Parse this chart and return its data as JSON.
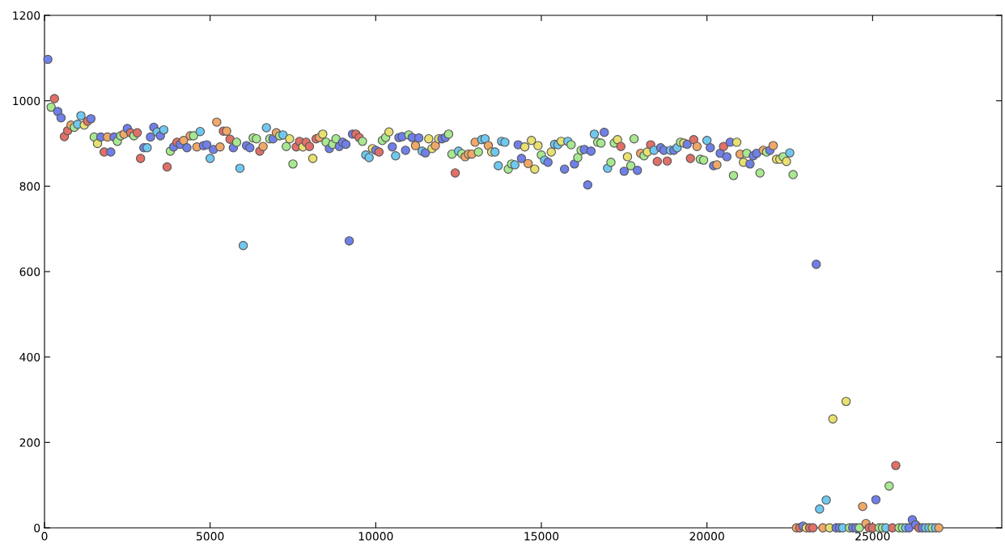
{
  "chart_data": {
    "type": "scatter",
    "xlim": [
      0,
      28900
    ],
    "ylim": [
      0,
      1200
    ],
    "xticks": [
      0,
      5000,
      10000,
      15000,
      20000,
      25000
    ],
    "yticks": [
      0,
      200,
      400,
      600,
      800,
      1000,
      1200
    ],
    "grid": false,
    "marker": "circle",
    "x": [
      100,
      200,
      300,
      400,
      500,
      600,
      700,
      800,
      900,
      1000,
      1100,
      1200,
      1300,
      1400,
      1500,
      1600,
      1700,
      1800,
      1900,
      2000,
      2100,
      2200,
      2300,
      2400,
      2500,
      2600,
      2700,
      2800,
      2900,
      3000,
      3100,
      3200,
      3300,
      3400,
      3500,
      3600,
      3700,
      3800,
      3900,
      4000,
      4100,
      4200,
      4300,
      4400,
      4500,
      4600,
      4700,
      4800,
      4900,
      5000,
      5100,
      5200,
      5300,
      5400,
      5500,
      5600,
      5700,
      5800,
      5900,
      6000,
      6100,
      6200,
      6300,
      6400,
      6500,
      6600,
      6700,
      6800,
      6900,
      7000,
      7100,
      7200,
      7300,
      7400,
      7500,
      7600,
      7700,
      7800,
      7900,
      8000,
      8100,
      8200,
      8300,
      8400,
      8500,
      8600,
      8700,
      8800,
      8900,
      9000,
      9100,
      9200,
      9300,
      9400,
      9500,
      9600,
      9700,
      9800,
      9900,
      10000,
      10100,
      10200,
      10300,
      10400,
      10500,
      10600,
      10700,
      10800,
      10900,
      11000,
      11100,
      11200,
      11300,
      11400,
      11500,
      11600,
      11700,
      11800,
      11900,
      12000,
      12100,
      12200,
      12300,
      12400,
      12500,
      12600,
      12700,
      12800,
      12900,
      13000,
      13100,
      13200,
      13300,
      13400,
      13500,
      13600,
      13700,
      13800,
      13900,
      14000,
      14100,
      14200,
      14300,
      14400,
      14500,
      14600,
      14700,
      14800,
      14900,
      15000,
      15100,
      15200,
      15300,
      15400,
      15500,
      15600,
      15700,
      15800,
      15900,
      16000,
      16100,
      16200,
      16300,
      16400,
      16500,
      16600,
      16700,
      16800,
      16900,
      17000,
      17100,
      17200,
      17300,
      17400,
      17500,
      17600,
      17700,
      17800,
      17900,
      18000,
      18100,
      18200,
      18300,
      18400,
      18500,
      18600,
      18700,
      18800,
      18900,
      19000,
      19100,
      19200,
      19300,
      19400,
      19500,
      19600,
      19700,
      19800,
      19900,
      20000,
      20100,
      20200,
      20300,
      20400,
      20500,
      20600,
      20700,
      20800,
      20900,
      21000,
      21100,
      21200,
      21300,
      21400,
      21500,
      21600,
      21700,
      21800,
      21900,
      22000,
      22100,
      22200,
      22300,
      22400,
      22500,
      22600,
      22700,
      22800,
      22900,
      23000,
      23100,
      23200,
      23300,
      23400,
      23500,
      23600,
      23700,
      23800,
      23900,
      24000,
      24100,
      24200,
      24300,
      24400,
      24500,
      24600,
      24700,
      24800,
      24900,
      25000,
      25100,
      25200,
      25300,
      25400,
      25500,
      25600,
      25700,
      25800,
      25900,
      26000,
      26100,
      26200,
      26300,
      26400,
      26500,
      26600,
      26700,
      26800,
      26900,
      27000
    ],
    "values": [
      1097,
      985,
      1005,
      975,
      960,
      916,
      930,
      943,
      938,
      945,
      965,
      943,
      952,
      958,
      915,
      900,
      915,
      880,
      915,
      880,
      915,
      905,
      918,
      922,
      935,
      925,
      918,
      925,
      865,
      890,
      890,
      915,
      938,
      927,
      918,
      932,
      845,
      882,
      892,
      903,
      898,
      907,
      890,
      918,
      918,
      892,
      928,
      895,
      897,
      865,
      886,
      950,
      892,
      929,
      929,
      910,
      890,
      903,
      842,
      661,
      895,
      890,
      913,
      911,
      882,
      893,
      937,
      911,
      911,
      925,
      918,
      920,
      893,
      911,
      852,
      892,
      905,
      892,
      903,
      893,
      865,
      911,
      914,
      922,
      903,
      888,
      898,
      911,
      893,
      903,
      898,
      672,
      922,
      922,
      914,
      905,
      873,
      867,
      888,
      884,
      880,
      907,
      914,
      927,
      892,
      871,
      914,
      916,
      884,
      920,
      914,
      895,
      913,
      882,
      878,
      911,
      888,
      895,
      911,
      911,
      914,
      922,
      875,
      831,
      882,
      876,
      869,
      875,
      875,
      903,
      880,
      909,
      911,
      895,
      880,
      880,
      848,
      905,
      903,
      840,
      852,
      850,
      897,
      865,
      892,
      853,
      907,
      840,
      895,
      873,
      861,
      856,
      880,
      898,
      897,
      905,
      840,
      905,
      897,
      852,
      867,
      884,
      886,
      803,
      882,
      922,
      903,
      901,
      926,
      842,
      856,
      901,
      909,
      893,
      835,
      869,
      848,
      911,
      837,
      877,
      871,
      880,
      897,
      884,
      858,
      890,
      884,
      859,
      884,
      884,
      890,
      903,
      901,
      898,
      865,
      909,
      893,
      863,
      861,
      907,
      890,
      848,
      850,
      877,
      893,
      869,
      903,
      825,
      903,
      875,
      856,
      877,
      852,
      871,
      877,
      831,
      884,
      880,
      884,
      895,
      863,
      863,
      869,
      858,
      878,
      827,
      0,
      0,
      4,
      0,
      0,
      0,
      617,
      44,
      0,
      65,
      0,
      255,
      0,
      0,
      0,
      296,
      0,
      0,
      0,
      0,
      50,
      10,
      0,
      0,
      66,
      0,
      0,
      0,
      98,
      0,
      146,
      0,
      0,
      0,
      0,
      19,
      7,
      0,
      0,
      0,
      0,
      0,
      0,
      0
    ],
    "colors": [
      "#7080e8",
      "#a8e890",
      "#e07068",
      "#7080e8",
      "#7080e8",
      "#e07068",
      "#e07068",
      "#f0a868",
      "#a8e890",
      "#70c8f0",
      "#70c8f0",
      "#e8e070",
      "#e07068",
      "#7080e8",
      "#a8e890",
      "#e8e070",
      "#7080e8",
      "#e07068",
      "#f0a868",
      "#7080e8",
      "#7080e8",
      "#a8e890",
      "#a8e890",
      "#f0a868",
      "#7080e8",
      "#e07068",
      "#a8e890",
      "#e07068",
      "#e07068",
      "#7080e8",
      "#70c8f0",
      "#7080e8",
      "#7080e8",
      "#70c8f0",
      "#7080e8",
      "#70c8f0",
      "#e07068",
      "#a8e890",
      "#7080e8",
      "#e07068",
      "#7080e8",
      "#f0a868",
      "#7080e8",
      "#f0a868",
      "#a8e890",
      "#f0a868",
      "#70c8f0",
      "#7080e8",
      "#7080e8",
      "#70c8f0",
      "#7080e8",
      "#f0a868",
      "#f0a868",
      "#e07068",
      "#f0a868",
      "#e07068",
      "#7080e8",
      "#a8e890",
      "#70c8f0",
      "#70c8f0",
      "#7080e8",
      "#7080e8",
      "#a8e890",
      "#a8e890",
      "#e07068",
      "#f0a868",
      "#70c8f0",
      "#a8e890",
      "#7080e8",
      "#f0a868",
      "#a8e890",
      "#70c8f0",
      "#a8e890",
      "#e8e070",
      "#a8e890",
      "#e07068",
      "#e07068",
      "#e8e070",
      "#e07068",
      "#e07068",
      "#e8e070",
      "#e07068",
      "#f0a868",
      "#e8e070",
      "#a8e890",
      "#7080e8",
      "#a8e890",
      "#a8e890",
      "#7080e8",
      "#7080e8",
      "#7080e8",
      "#7080e8",
      "#7080e8",
      "#e07068",
      "#e07068",
      "#a8e890",
      "#70c8f0",
      "#70c8f0",
      "#e8e070",
      "#7080e8",
      "#e07068",
      "#a8e890",
      "#a8e890",
      "#e8e070",
      "#7080e8",
      "#70c8f0",
      "#7080e8",
      "#7080e8",
      "#7080e8",
      "#a8e890",
      "#7080e8",
      "#f0a868",
      "#7080e8",
      "#70c8f0",
      "#7080e8",
      "#e8e070",
      "#e8e070",
      "#f0a868",
      "#e8e070",
      "#7080e8",
      "#7080e8",
      "#a8e890",
      "#a8e890",
      "#e07068",
      "#70c8f0",
      "#a8e890",
      "#f0a868",
      "#f0a868",
      "#f0a868",
      "#f0a868",
      "#a8e890",
      "#70c8f0",
      "#70c8f0",
      "#f0a868",
      "#e8e070",
      "#70c8f0",
      "#70c8f0",
      "#70c8f0",
      "#70c8f0",
      "#a8e890",
      "#a8e890",
      "#70c8f0",
      "#7080e8",
      "#7080e8",
      "#e8e070",
      "#f0a868",
      "#e8e070",
      "#e8e070",
      "#e8e070",
      "#a8e890",
      "#70c8f0",
      "#7080e8",
      "#e8e070",
      "#70c8f0",
      "#70c8f0",
      "#e8e070",
      "#7080e8",
      "#70c8f0",
      "#a8e890",
      "#7080e8",
      "#a8e890",
      "#a8e890",
      "#7080e8",
      "#7080e8",
      "#7080e8",
      "#70c8f0",
      "#a8e890",
      "#a8e890",
      "#7080e8",
      "#70c8f0",
      "#a8e890",
      "#a8e890",
      "#e8e070",
      "#e07068",
      "#7080e8",
      "#e8e070",
      "#a8e890",
      "#a8e890",
      "#7080e8",
      "#f0a868",
      "#a8e890",
      "#e8e070",
      "#e07068",
      "#70c8f0",
      "#e07068",
      "#7080e8",
      "#7080e8",
      "#e07068",
      "#70c8f0",
      "#7080e8",
      "#70c8f0",
      "#a8e890",
      "#e8e070",
      "#7080e8",
      "#e07068",
      "#e07068",
      "#f0a868",
      "#a8e890",
      "#a8e890",
      "#70c8f0",
      "#7080e8",
      "#7080e8",
      "#f0a868",
      "#7080e8",
      "#e07068",
      "#7080e8",
      "#7080e8",
      "#a8e890",
      "#e8e070",
      "#f0a868",
      "#e8e070",
      "#a8e890",
      "#7080e8",
      "#7080e8",
      "#7080e8",
      "#a8e890",
      "#f0a868",
      "#a8e890",
      "#7080e8",
      "#f0a868",
      "#e8e070",
      "#e8e070",
      "#a8e890",
      "#e8e070",
      "#70c8f0",
      "#a8e890",
      "#f0a868",
      "#e07068",
      "#7080e8",
      "#e8e070",
      "#e07068",
      "#e07068",
      "#7080e8",
      "#70c8f0",
      "#f0a868",
      "#70c8f0",
      "#e8e070",
      "#e8e070",
      "#7080e8",
      "#7080e8",
      "#70c8f0",
      "#e8e070",
      "#a8e890",
      "#7080e8",
      "#7080e8",
      "#a8e890",
      "#f0a868",
      "#f0a868",
      "#e07068",
      "#e07068",
      "#7080e8",
      "#a8e890",
      "#a8e890",
      "#70c8f0",
      "#a8e890",
      "#e07068",
      "#e07068",
      "#a8e890",
      "#a8e890",
      "#70c8f0",
      "#7080e8",
      "#7080e8",
      "#7080e8",
      "#e07068",
      "#7080e8",
      "#70c8f0",
      "#70c8f0",
      "#a8e890",
      "#70c8f0",
      "#f0a868"
    ]
  }
}
